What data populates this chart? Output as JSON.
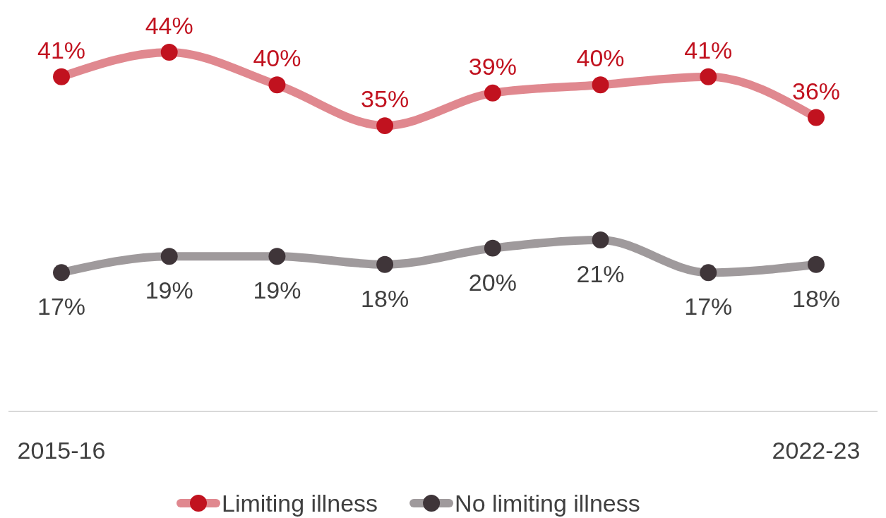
{
  "chart_data": {
    "type": "line",
    "categories": [
      "2015-16",
      null,
      null,
      null,
      null,
      null,
      null,
      "2022-23"
    ],
    "series": [
      {
        "name": "Limiting illness",
        "color": "#c1121f",
        "values": [
          41,
          44,
          40,
          35,
          39,
          40,
          41,
          36
        ],
        "value_labels": [
          "41%",
          "44%",
          "40%",
          "35%",
          "39%",
          "40%",
          "41%",
          "36%"
        ]
      },
      {
        "name": "No limiting illness",
        "color": "#3f3539",
        "values": [
          17,
          19,
          19,
          18,
          20,
          21,
          17,
          18
        ],
        "value_labels": [
          "17%",
          "19%",
          "19%",
          "18%",
          "20%",
          "21%",
          "17%",
          "18%"
        ]
      }
    ],
    "marker": "circle",
    "legend": "bottom"
  }
}
